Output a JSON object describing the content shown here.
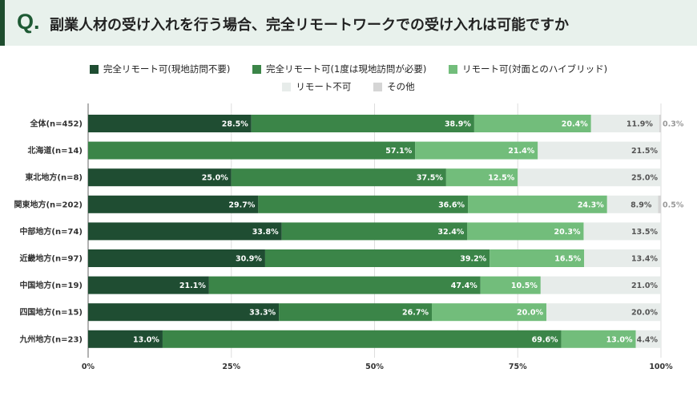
{
  "header": {
    "q": "Q.",
    "title": "副業人材の受け入れを行う場合、完全リモートワークでの受け入れは可能ですか"
  },
  "chart_data": {
    "type": "bar",
    "orientation": "horizontal",
    "stacked": true,
    "title": "副業人材の受け入れを行う場合、完全リモートワークでの受け入れは可能ですか",
    "categories": [
      "全体(n=452)",
      "北海道(n=14)",
      "東北地方(n=8)",
      "関東地方(n=202)",
      "中部地方(n=74)",
      "近畿地方(n=97)",
      "中国地方(n=19)",
      "四国地方(n=15)",
      "九州地方(n=23)"
    ],
    "series": [
      {
        "name": "完全リモート可(現地訪問不要)",
        "color": "#1f4d32",
        "values": [
          28.5,
          0,
          25.0,
          29.7,
          33.8,
          30.9,
          21.1,
          33.3,
          13.0
        ]
      },
      {
        "name": "完全リモート可(1度は現地訪問が必要)",
        "color": "#3b8548",
        "values": [
          38.9,
          57.1,
          37.5,
          36.6,
          32.4,
          39.2,
          47.4,
          26.7,
          69.6
        ]
      },
      {
        "name": "リモート可(対面とのハイブリッド)",
        "color": "#72bd7b",
        "values": [
          20.4,
          21.4,
          12.5,
          24.3,
          20.3,
          16.5,
          10.5,
          20.0,
          13.0
        ]
      },
      {
        "name": "リモート不可",
        "color": "#e7ecea",
        "values": [
          11.9,
          21.5,
          25.0,
          8.9,
          13.5,
          13.4,
          21.0,
          20.0,
          4.4
        ]
      },
      {
        "name": "その他",
        "color": "#d5d5d5",
        "values": [
          0.3,
          0,
          0,
          0.5,
          0,
          0,
          0,
          0,
          0
        ]
      }
    ],
    "xlim": [
      0,
      100
    ],
    "xticks": [
      "0%",
      "25%",
      "50%",
      "75%",
      "100%"
    ],
    "grid": true,
    "legend": "top"
  }
}
